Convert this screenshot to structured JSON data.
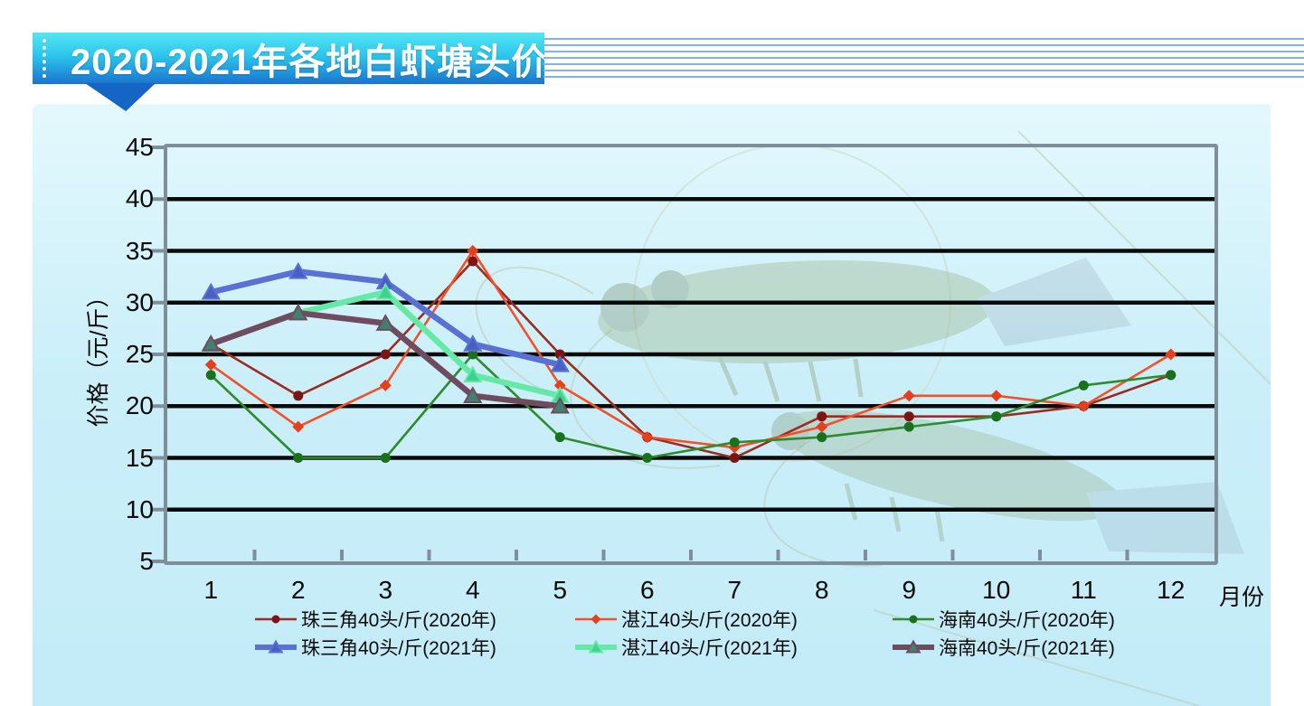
{
  "header": {
    "title": "2020-2021年各地白虾塘头价"
  },
  "chart_data": {
    "type": "line",
    "title": "2020-2021年各地白虾塘头价",
    "xlabel": "月份",
    "ylabel": "价格（元/斤）",
    "x_categories": [
      "1",
      "2",
      "3",
      "4",
      "5",
      "6",
      "7",
      "8",
      "9",
      "10",
      "11",
      "12"
    ],
    "ylim": [
      5,
      45
    ],
    "yticks": [
      45,
      40,
      35,
      30,
      25,
      20,
      15,
      10,
      5
    ],
    "gridline_values": [
      40,
      35,
      30,
      25,
      20,
      15,
      10
    ],
    "grid": "horizontal",
    "legend_position": "bottom",
    "series": [
      {
        "name": "珠三角40头/斤(2020年)",
        "color": "#9C2B20",
        "marker_color": "#7C1414",
        "marker": "circle",
        "thick": false,
        "values": [
          26,
          21,
          25,
          34,
          25,
          17,
          15,
          19,
          19,
          19,
          20,
          23
        ]
      },
      {
        "name": "湛江40头/斤(2020年)",
        "color": "#F2512A",
        "marker_color": "#E63F1C",
        "marker": "diamond",
        "thick": false,
        "values": [
          24,
          18,
          22,
          35,
          22,
          17,
          16,
          18,
          21,
          21,
          20,
          25
        ]
      },
      {
        "name": "海南40头/斤(2020年)",
        "color": "#2E8B2E",
        "marker_color": "#1B701B",
        "marker": "circle",
        "thick": false,
        "values": [
          23,
          15,
          15,
          25,
          17,
          15,
          16.5,
          17,
          18,
          19,
          22,
          23
        ]
      },
      {
        "name": "珠三角40头/斤(2021年)",
        "color": "#5A70D2",
        "marker_color": "#4A5FC4",
        "marker": "triangle",
        "thick": true,
        "values": [
          31,
          33,
          32,
          26,
          24
        ]
      },
      {
        "name": "湛江40头/斤(2021年)",
        "color": "#66E9A7",
        "marker_color": "#3FD18D",
        "marker": "triangle",
        "thick": true,
        "values": [
          26,
          29,
          31,
          23,
          21
        ]
      },
      {
        "name": "海南40头/斤(2021年)",
        "color": "#6F4B5F",
        "marker_color": "#3F8070",
        "marker_stroke": "#6F4B5F",
        "marker": "triangle",
        "thick": true,
        "values": [
          26,
          29,
          28,
          21,
          20
        ]
      }
    ]
  },
  "colors": {
    "banner_top": "#55E6F3",
    "banner_bottom": "#1B74CE",
    "panel_background": "#C9EEF9",
    "gridline": "#0A0A0A",
    "frame": "#7E8F9A"
  }
}
